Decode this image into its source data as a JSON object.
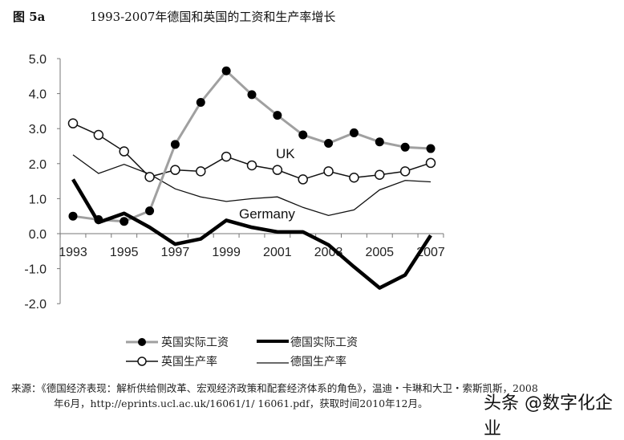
{
  "figure": {
    "label": "图 5a",
    "title": "1993-2007年德国和英国的工资和生产率增长"
  },
  "annotations": {
    "uk": "UK",
    "germany": "Germany"
  },
  "legend": [
    {
      "label": "英国实际工资",
      "style": "gray-line-filled-circle"
    },
    {
      "label": "德国实际工资",
      "style": "thick-black-line"
    },
    {
      "label": "英国生产率",
      "style": "black-line-open-circle"
    },
    {
      "label": "德国生产率",
      "style": "thin-black-line"
    }
  ],
  "source": {
    "line1": "来源：《德国经济表现：解析供给侧改革、宏观经济政策和配套经济体系的角色》，温迪・卡琳和大卫・索斯凯斯，2008",
    "line2": "年6月，http://eprints.ucl.ac.uk/16061/1/ 16061.pdf，获取时间2010年12月。"
  },
  "watermark": "头条 @数字化企业",
  "colors": {
    "uk_wage": "#a0a0a0",
    "marker": "#000000",
    "germany_wage": "#000000",
    "line": "#111111"
  },
  "chart_data": {
    "type": "line",
    "title": "1993-2007年德国和英国的工资和生产率增长",
    "xlabel": "",
    "ylabel": "",
    "x": [
      1993,
      1994,
      1995,
      1996,
      1997,
      1998,
      1999,
      2000,
      2001,
      2002,
      2003,
      2004,
      2005,
      2006,
      2007
    ],
    "x_tick_labels": [
      "1993",
      "1995",
      "1997",
      "1999",
      "2001",
      "2003",
      "2005",
      "2007"
    ],
    "y_tick_labels": [
      "5.0",
      "4.0",
      "3.0",
      "2.0",
      "1.0",
      "0.0",
      "-1.0",
      "-2.0"
    ],
    "ylim": [
      -2.0,
      5.0
    ],
    "grid": false,
    "legend_position": "bottom",
    "series": [
      {
        "name": "英国实际工资",
        "values": [
          0.5,
          0.4,
          0.35,
          0.65,
          2.55,
          3.75,
          4.65,
          3.97,
          3.38,
          2.82,
          2.58,
          2.88,
          2.62,
          2.47,
          2.43
        ]
      },
      {
        "name": "英国生产率",
        "values": [
          3.15,
          2.82,
          2.35,
          1.62,
          1.82,
          1.78,
          2.2,
          1.95,
          1.82,
          1.55,
          1.78,
          1.6,
          1.68,
          1.78,
          2.02
        ]
      },
      {
        "name": "德国实际工资",
        "values": [
          1.55,
          0.32,
          0.58,
          0.18,
          -0.3,
          -0.15,
          0.38,
          0.18,
          0.05,
          0.05,
          -0.32,
          -0.95,
          -1.55,
          -1.18,
          -0.05
        ]
      },
      {
        "name": "德国生产率",
        "values": [
          2.25,
          1.72,
          1.98,
          1.7,
          1.28,
          1.05,
          0.92,
          1.0,
          1.05,
          0.75,
          0.52,
          0.68,
          1.25,
          1.52,
          1.48
        ]
      }
    ],
    "annotations": [
      {
        "text": "UK",
        "x": 2001.5,
        "y": 2.5
      },
      {
        "text": "Germany",
        "x": 2001.2,
        "y": 0.55
      }
    ]
  }
}
